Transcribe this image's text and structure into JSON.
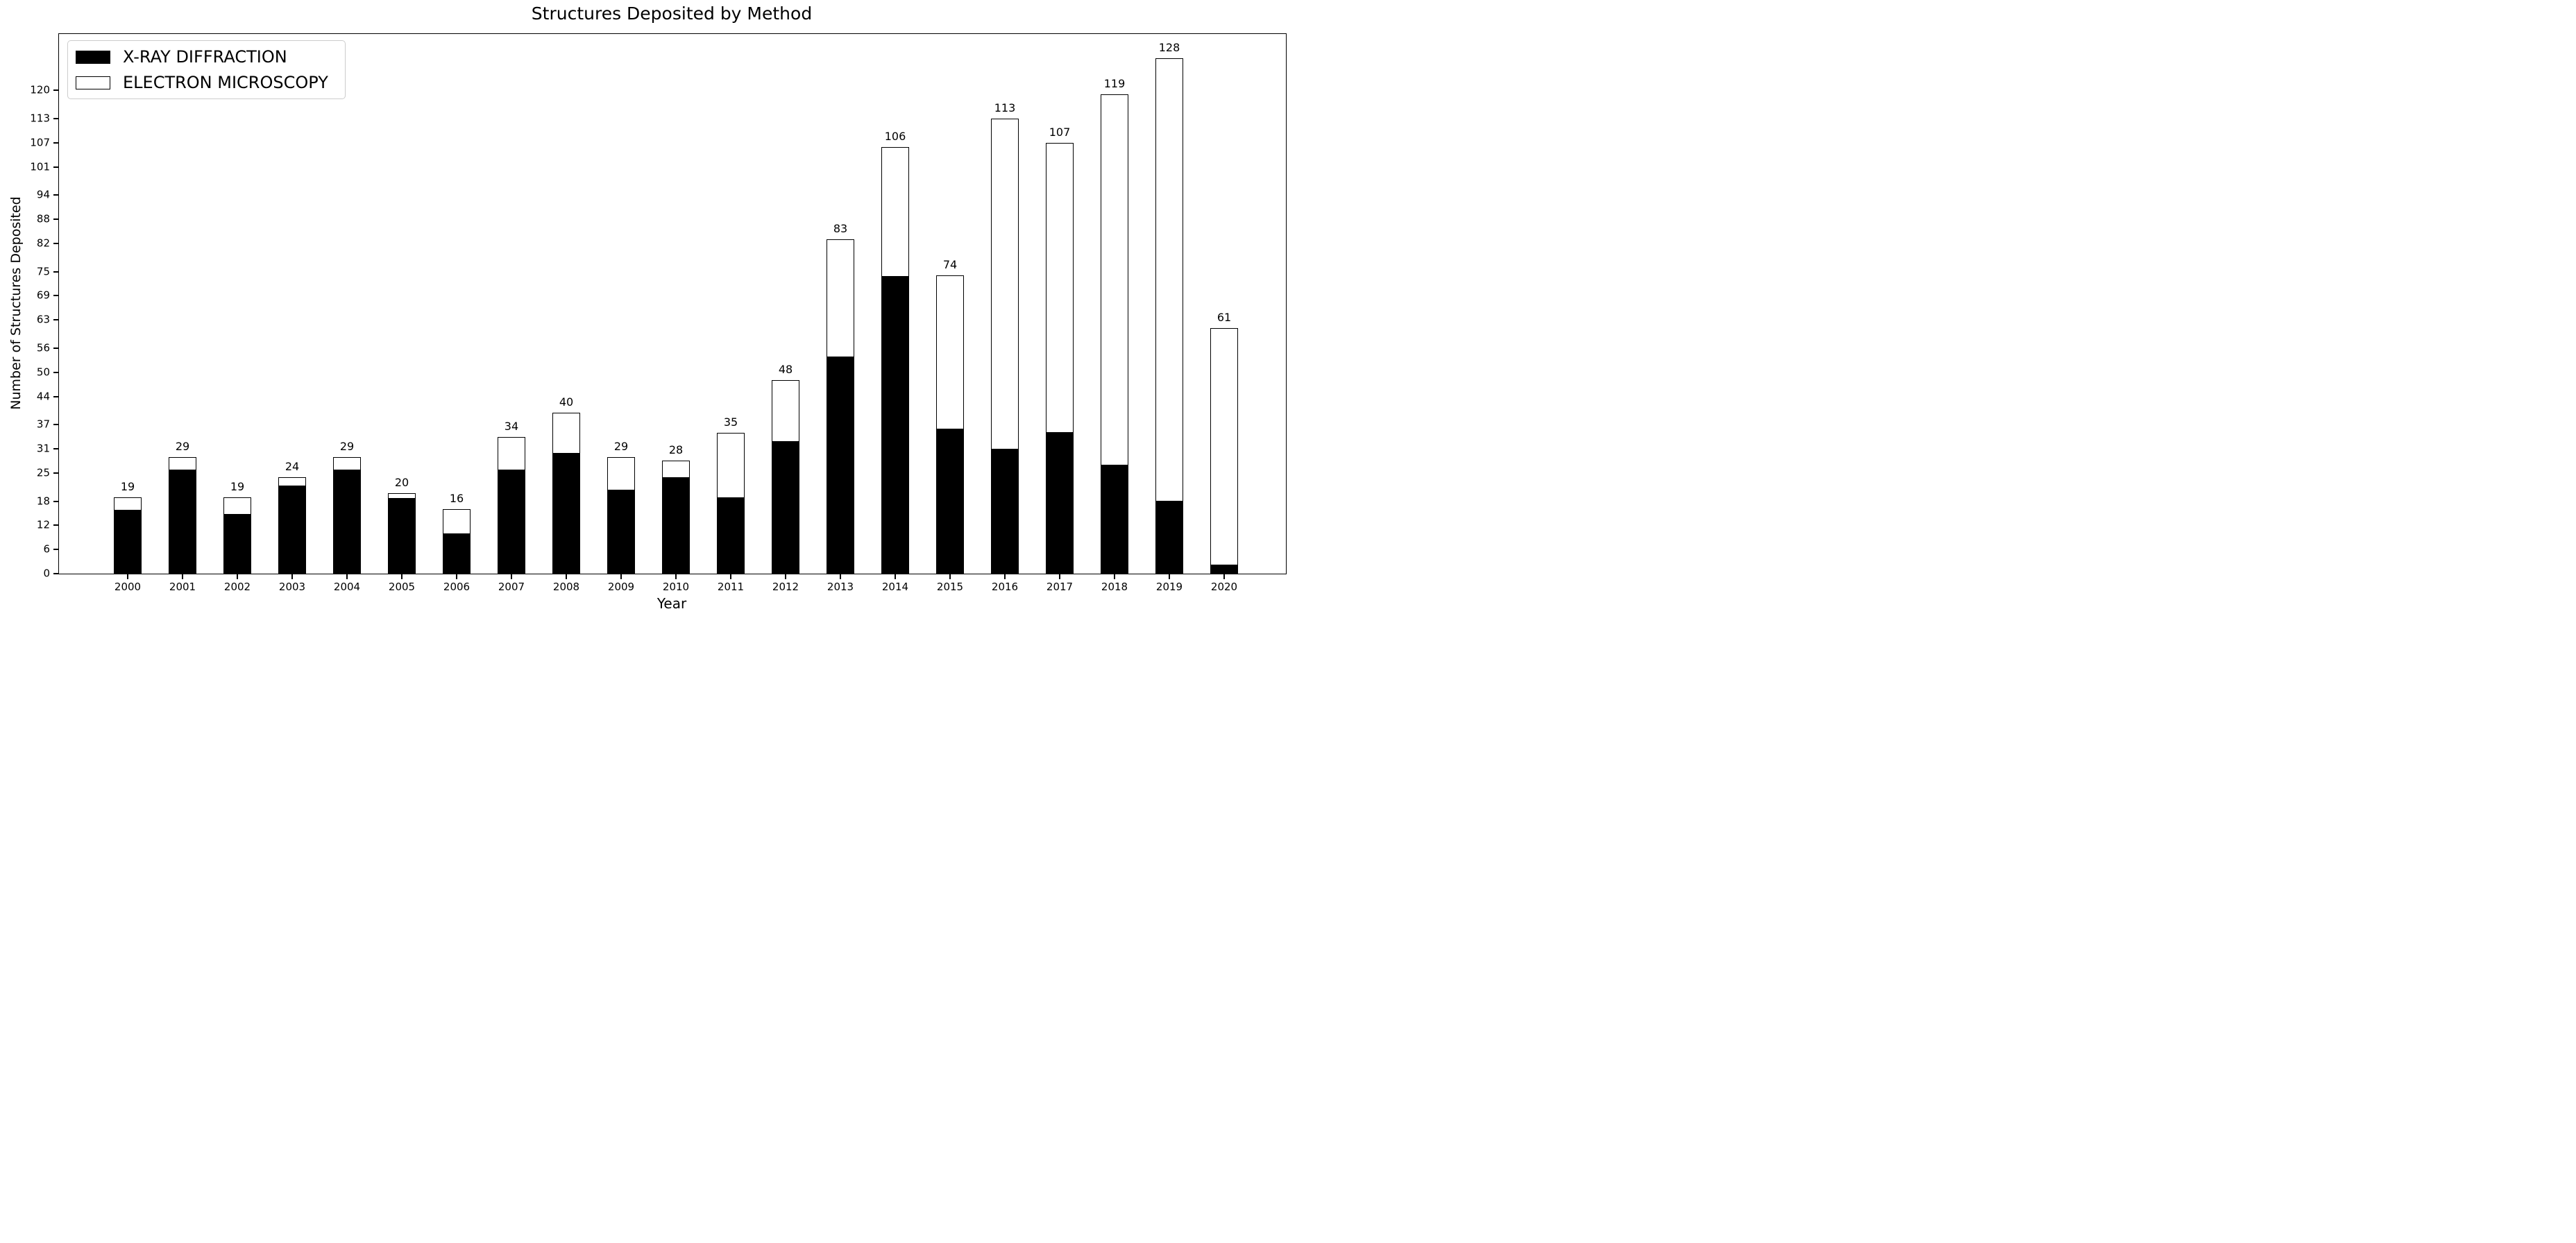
{
  "title": "Structures Deposited by Method",
  "xlabel": "Year",
  "ylabel": "Number of Structures Deposited",
  "legend": {
    "xray": "X-RAY DIFFRACTION",
    "em": "ELECTRON MICROSCOPY",
    "position": "upper-left"
  },
  "colors": {
    "xray": "#000000",
    "em": "#ffffff",
    "bar_edge": "#000000",
    "legend_border": "#cccccc",
    "background": "#ffffff",
    "text": "#000000"
  },
  "chart_data": {
    "type": "bar",
    "stacked": true,
    "title": "Structures Deposited by Method",
    "xlabel": "Year",
    "ylabel": "Number of Structures Deposited",
    "legend_position": "upper-left",
    "grid": false,
    "categories": [
      "2000",
      "2001",
      "2002",
      "2003",
      "2004",
      "2005",
      "2006",
      "2007",
      "2008",
      "2009",
      "2010",
      "2011",
      "2012",
      "2013",
      "2014",
      "2015",
      "2016",
      "2017",
      "2018",
      "2019",
      "2020"
    ],
    "series": [
      {
        "name": "X-RAY DIFFRACTION",
        "color": "#000000",
        "values": [
          16,
          26,
          15,
          22,
          26,
          19,
          10,
          26,
          30,
          21,
          24,
          19,
          33,
          54,
          74,
          36,
          31,
          35,
          27,
          18,
          2
        ]
      },
      {
        "name": "ELECTRON MICROSCOPY",
        "color": "#ffffff",
        "values": [
          3,
          3,
          4,
          2,
          3,
          1,
          6,
          8,
          10,
          8,
          4,
          16,
          15,
          29,
          32,
          38,
          82,
          72,
          92,
          110,
          59
        ]
      }
    ],
    "totals": [
      19,
      29,
      19,
      24,
      29,
      20,
      16,
      34,
      40,
      29,
      28,
      35,
      48,
      83,
      106,
      74,
      113,
      107,
      119,
      128,
      61
    ],
    "bar_total_labels": [
      "19",
      "29",
      "19",
      "24",
      "29",
      "20",
      "16",
      "34",
      "40",
      "29",
      "28",
      "35",
      "48",
      "83",
      "106",
      "74",
      "113",
      "107",
      "119",
      "128",
      "61"
    ],
    "yticks": [
      0,
      6,
      12,
      18,
      25,
      31,
      37,
      44,
      50,
      56,
      63,
      69,
      75,
      82,
      88,
      94,
      101,
      107,
      113,
      120
    ],
    "ylim": [
      0,
      134
    ]
  }
}
